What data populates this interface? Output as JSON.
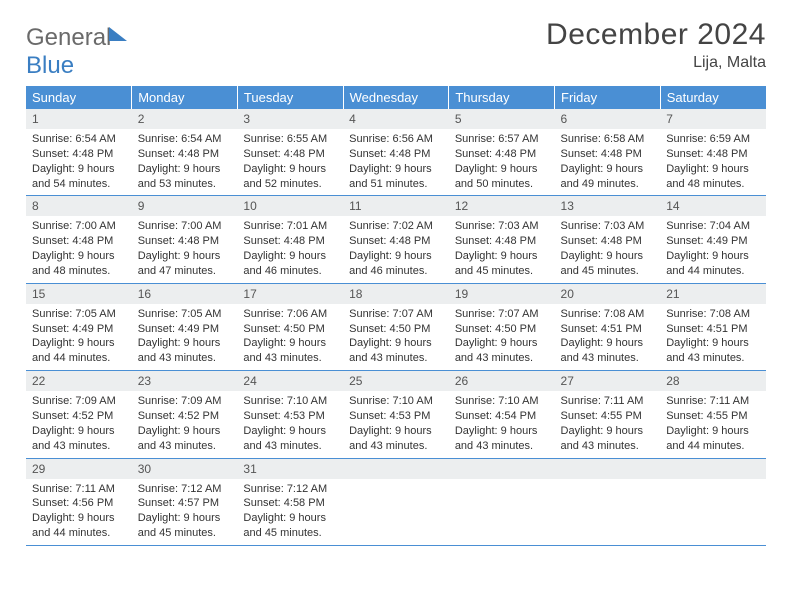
{
  "logo": {
    "word1": "General",
    "word2": "Blue"
  },
  "title": "December 2024",
  "location": "Lija, Malta",
  "header_bg": "#4a8fd4",
  "header_text_color": "#ffffff",
  "daynum_bg": "#eceeef",
  "cell_border_color": "#4a8fd4",
  "body_text_color": "#333333",
  "fonts": {
    "title_size_pt": 22,
    "header_size_pt": 10,
    "body_size_pt": 8
  },
  "weekdays": [
    "Sunday",
    "Monday",
    "Tuesday",
    "Wednesday",
    "Thursday",
    "Friday",
    "Saturday"
  ],
  "weeks": [
    [
      {
        "n": "1",
        "sr": "Sunrise: 6:54 AM",
        "ss": "Sunset: 4:48 PM",
        "dl": "Daylight: 9 hours and 54 minutes."
      },
      {
        "n": "2",
        "sr": "Sunrise: 6:54 AM",
        "ss": "Sunset: 4:48 PM",
        "dl": "Daylight: 9 hours and 53 minutes."
      },
      {
        "n": "3",
        "sr": "Sunrise: 6:55 AM",
        "ss": "Sunset: 4:48 PM",
        "dl": "Daylight: 9 hours and 52 minutes."
      },
      {
        "n": "4",
        "sr": "Sunrise: 6:56 AM",
        "ss": "Sunset: 4:48 PM",
        "dl": "Daylight: 9 hours and 51 minutes."
      },
      {
        "n": "5",
        "sr": "Sunrise: 6:57 AM",
        "ss": "Sunset: 4:48 PM",
        "dl": "Daylight: 9 hours and 50 minutes."
      },
      {
        "n": "6",
        "sr": "Sunrise: 6:58 AM",
        "ss": "Sunset: 4:48 PM",
        "dl": "Daylight: 9 hours and 49 minutes."
      },
      {
        "n": "7",
        "sr": "Sunrise: 6:59 AM",
        "ss": "Sunset: 4:48 PM",
        "dl": "Daylight: 9 hours and 48 minutes."
      }
    ],
    [
      {
        "n": "8",
        "sr": "Sunrise: 7:00 AM",
        "ss": "Sunset: 4:48 PM",
        "dl": "Daylight: 9 hours and 48 minutes."
      },
      {
        "n": "9",
        "sr": "Sunrise: 7:00 AM",
        "ss": "Sunset: 4:48 PM",
        "dl": "Daylight: 9 hours and 47 minutes."
      },
      {
        "n": "10",
        "sr": "Sunrise: 7:01 AM",
        "ss": "Sunset: 4:48 PM",
        "dl": "Daylight: 9 hours and 46 minutes."
      },
      {
        "n": "11",
        "sr": "Sunrise: 7:02 AM",
        "ss": "Sunset: 4:48 PM",
        "dl": "Daylight: 9 hours and 46 minutes."
      },
      {
        "n": "12",
        "sr": "Sunrise: 7:03 AM",
        "ss": "Sunset: 4:48 PM",
        "dl": "Daylight: 9 hours and 45 minutes."
      },
      {
        "n": "13",
        "sr": "Sunrise: 7:03 AM",
        "ss": "Sunset: 4:48 PM",
        "dl": "Daylight: 9 hours and 45 minutes."
      },
      {
        "n": "14",
        "sr": "Sunrise: 7:04 AM",
        "ss": "Sunset: 4:49 PM",
        "dl": "Daylight: 9 hours and 44 minutes."
      }
    ],
    [
      {
        "n": "15",
        "sr": "Sunrise: 7:05 AM",
        "ss": "Sunset: 4:49 PM",
        "dl": "Daylight: 9 hours and 44 minutes."
      },
      {
        "n": "16",
        "sr": "Sunrise: 7:05 AM",
        "ss": "Sunset: 4:49 PM",
        "dl": "Daylight: 9 hours and 43 minutes."
      },
      {
        "n": "17",
        "sr": "Sunrise: 7:06 AM",
        "ss": "Sunset: 4:50 PM",
        "dl": "Daylight: 9 hours and 43 minutes."
      },
      {
        "n": "18",
        "sr": "Sunrise: 7:07 AM",
        "ss": "Sunset: 4:50 PM",
        "dl": "Daylight: 9 hours and 43 minutes."
      },
      {
        "n": "19",
        "sr": "Sunrise: 7:07 AM",
        "ss": "Sunset: 4:50 PM",
        "dl": "Daylight: 9 hours and 43 minutes."
      },
      {
        "n": "20",
        "sr": "Sunrise: 7:08 AM",
        "ss": "Sunset: 4:51 PM",
        "dl": "Daylight: 9 hours and 43 minutes."
      },
      {
        "n": "21",
        "sr": "Sunrise: 7:08 AM",
        "ss": "Sunset: 4:51 PM",
        "dl": "Daylight: 9 hours and 43 minutes."
      }
    ],
    [
      {
        "n": "22",
        "sr": "Sunrise: 7:09 AM",
        "ss": "Sunset: 4:52 PM",
        "dl": "Daylight: 9 hours and 43 minutes."
      },
      {
        "n": "23",
        "sr": "Sunrise: 7:09 AM",
        "ss": "Sunset: 4:52 PM",
        "dl": "Daylight: 9 hours and 43 minutes."
      },
      {
        "n": "24",
        "sr": "Sunrise: 7:10 AM",
        "ss": "Sunset: 4:53 PM",
        "dl": "Daylight: 9 hours and 43 minutes."
      },
      {
        "n": "25",
        "sr": "Sunrise: 7:10 AM",
        "ss": "Sunset: 4:53 PM",
        "dl": "Daylight: 9 hours and 43 minutes."
      },
      {
        "n": "26",
        "sr": "Sunrise: 7:10 AM",
        "ss": "Sunset: 4:54 PM",
        "dl": "Daylight: 9 hours and 43 minutes."
      },
      {
        "n": "27",
        "sr": "Sunrise: 7:11 AM",
        "ss": "Sunset: 4:55 PM",
        "dl": "Daylight: 9 hours and 43 minutes."
      },
      {
        "n": "28",
        "sr": "Sunrise: 7:11 AM",
        "ss": "Sunset: 4:55 PM",
        "dl": "Daylight: 9 hours and 44 minutes."
      }
    ],
    [
      {
        "n": "29",
        "sr": "Sunrise: 7:11 AM",
        "ss": "Sunset: 4:56 PM",
        "dl": "Daylight: 9 hours and 44 minutes."
      },
      {
        "n": "30",
        "sr": "Sunrise: 7:12 AM",
        "ss": "Sunset: 4:57 PM",
        "dl": "Daylight: 9 hours and 45 minutes."
      },
      {
        "n": "31",
        "sr": "Sunrise: 7:12 AM",
        "ss": "Sunset: 4:58 PM",
        "dl": "Daylight: 9 hours and 45 minutes."
      },
      {
        "empty": true
      },
      {
        "empty": true
      },
      {
        "empty": true
      },
      {
        "empty": true
      }
    ]
  ]
}
